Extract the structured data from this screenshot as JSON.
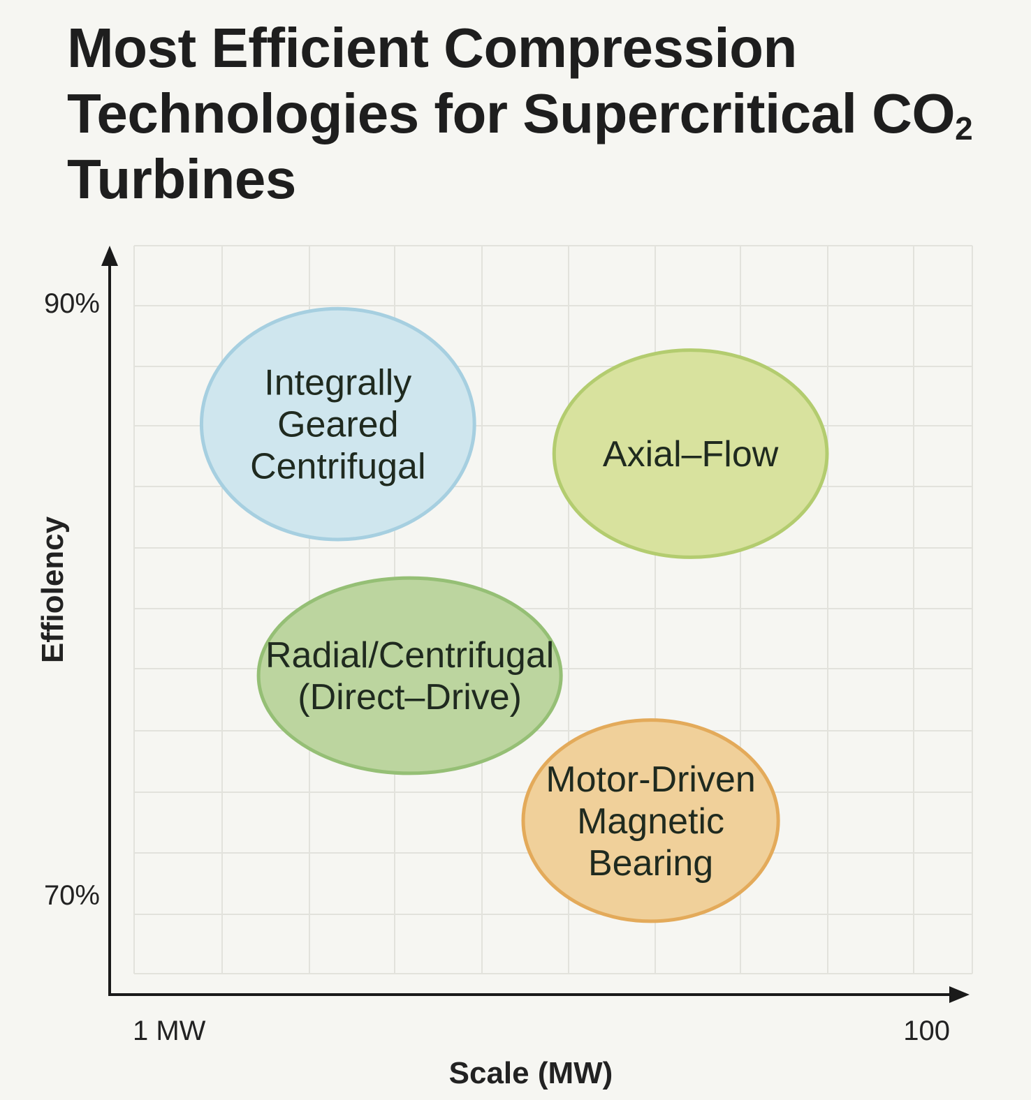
{
  "chart_data": {
    "type": "scatter",
    "title": {
      "main": "Most Efficient Compression Technologies for Supercritical CO",
      "subscript": "2",
      "tail": " Turbines"
    },
    "xlabel": "Scale (MW)",
    "ylabel": "Effiolency",
    "x_tick_labels": [
      "1 MW",
      "100"
    ],
    "y_tick_labels": [
      "90%",
      "70%"
    ],
    "xlim": [
      1,
      100
    ],
    "x_scale": "log",
    "ylim": [
      70,
      90
    ],
    "grid": true,
    "bubbles": [
      {
        "name": "Integrally Geared Centrifugal",
        "label_lines": [
          "Integrally",
          "Geared",
          "Centrifugal"
        ],
        "x_center": 3.3,
        "x_range": [
          1.5,
          7.5
        ],
        "y_center": 86,
        "y_range": [
          82.1,
          89.9
        ],
        "fill": "#cfe6ee",
        "stroke": "#a6cfe0"
      },
      {
        "name": "Axial-Flow",
        "label_lines": [
          "Axial–Flow"
        ],
        "x_center": 27,
        "x_range": [
          12,
          60
        ],
        "y_center": 85,
        "y_range": [
          81.5,
          88.5
        ],
        "fill": "#d8e29e",
        "stroke": "#b3cc6f"
      },
      {
        "name": "Radial/Centrifugal (Direct-Drive)",
        "label_lines": [
          "Radial/Centrifugal",
          "(Direct–Drive)"
        ],
        "x_center": 5.1,
        "x_range": [
          2.1,
          12.5
        ],
        "y_center": 77.5,
        "y_range": [
          74.2,
          80.8
        ],
        "fill": "#bcd59f",
        "stroke": "#95bf75"
      },
      {
        "name": "Motor-Driven Magnetic Bearing",
        "label_lines": [
          "Motor-Driven",
          "Magnetic",
          "Bearing"
        ],
        "x_center": 21,
        "x_range": [
          10,
          45
        ],
        "y_center": 72.6,
        "y_range": [
          69.2,
          76
        ]
      }
    ],
    "bubble_styles": [
      {
        "fill": "#cfe6ee",
        "stroke": "#a6cfe0"
      },
      {
        "fill": "#d8e29e",
        "stroke": "#b3cc6f"
      },
      {
        "fill": "#bcd59f",
        "stroke": "#95bf75"
      },
      {
        "fill": "#f0d09a",
        "stroke": "#e3aa5a"
      }
    ]
  }
}
